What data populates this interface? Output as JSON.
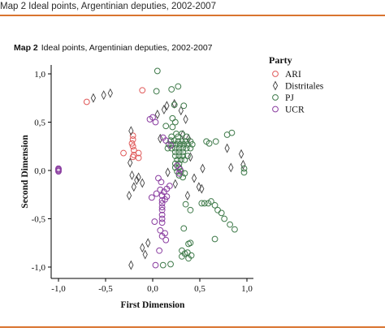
{
  "header": {
    "caption": "Map 2 Ideal points, Argentinian deputies, 2002-2007"
  },
  "figure": {
    "label": "Map 2",
    "title": "Ideal points, Argentinian deputies, 2002-2007"
  },
  "colors": {
    "ARI": "#e05a5a",
    "Distritales": "#444444",
    "PJ": "#3f7a4a",
    "UCR": "#8a3da0",
    "rule": "#d9742f"
  },
  "chart_data": {
    "type": "scatter",
    "xlabel": "First Dimension",
    "ylabel": "Second Dimension",
    "xlim": [
      -1.05,
      1.05
    ],
    "ylim": [
      -1.05,
      1.05
    ],
    "xticks": [
      "-1,0",
      "-0,5",
      "0,0",
      "0,5",
      "1,0"
    ],
    "yticks": [
      "1,0",
      "0,5",
      "0,0",
      "-0,5",
      "-1,0"
    ],
    "legend_title": "Party",
    "legend_position": "right",
    "series": [
      {
        "name": "ARI",
        "marker": "circle",
        "points": [
          [
            -0.7,
            0.71
          ],
          [
            -0.11,
            0.83
          ],
          [
            -0.21,
            0.36
          ],
          [
            -0.21,
            0.32
          ],
          [
            -0.22,
            0.28
          ],
          [
            -0.21,
            0.25
          ],
          [
            -0.2,
            0.21
          ],
          [
            -0.15,
            0.18
          ],
          [
            -0.31,
            0.18
          ],
          [
            -0.2,
            0.16
          ],
          [
            -0.21,
            0.14
          ],
          [
            -0.15,
            0.13
          ]
        ]
      },
      {
        "name": "Distritales",
        "marker": "diamond",
        "points": [
          [
            -0.63,
            0.75
          ],
          [
            -0.52,
            0.78
          ],
          [
            -0.45,
            0.8
          ],
          [
            -0.23,
            0.41
          ],
          [
            -0.24,
            0.08
          ],
          [
            -0.22,
            -0.05
          ],
          [
            -0.17,
            -0.1
          ],
          [
            -0.15,
            -0.07
          ],
          [
            -0.11,
            -0.13
          ],
          [
            -0.05,
            -0.75
          ],
          [
            -0.11,
            -0.8
          ],
          [
            -0.08,
            -0.87
          ],
          [
            -0.23,
            -0.98
          ],
          [
            -0.2,
            -0.17
          ],
          [
            -0.25,
            -0.26
          ],
          [
            0.05,
            0.58
          ],
          [
            0.12,
            0.63
          ],
          [
            0.15,
            0.67
          ],
          [
            0.23,
            0.69
          ],
          [
            0.3,
            0.62
          ],
          [
            0.38,
            0.33
          ],
          [
            0.4,
            0.14
          ],
          [
            0.44,
            -0.08
          ],
          [
            0.49,
            -0.17
          ],
          [
            0.52,
            -0.19
          ],
          [
            0.37,
            -0.26
          ],
          [
            0.24,
            -0.14
          ],
          [
            0.32,
            0.37
          ],
          [
            0.35,
            0.53
          ],
          [
            0.16,
            -0.02
          ],
          [
            0.08,
            0.33
          ],
          [
            0.83,
            0.03
          ],
          [
            0.79,
            0.23
          ],
          [
            0.94,
            0.17
          ],
          [
            0.96,
            0.06
          ],
          [
            0.53,
            0.02
          ]
        ]
      },
      {
        "name": "PJ",
        "marker": "circle",
        "points": [
          [
            0.05,
            1.03
          ],
          [
            0.2,
            0.84
          ],
          [
            0.27,
            0.87
          ],
          [
            0.04,
            0.82
          ],
          [
            0.23,
            0.68
          ],
          [
            0.33,
            0.67
          ],
          [
            0.21,
            0.54
          ],
          [
            0.24,
            0.5
          ],
          [
            0.14,
            0.46
          ],
          [
            0.21,
            0.45
          ],
          [
            0.25,
            0.38
          ],
          [
            0.31,
            0.38
          ],
          [
            0.2,
            0.35
          ],
          [
            0.27,
            0.35
          ],
          [
            0.36,
            0.35
          ],
          [
            0.19,
            0.31
          ],
          [
            0.23,
            0.31
          ],
          [
            0.27,
            0.3
          ],
          [
            0.31,
            0.3
          ],
          [
            0.35,
            0.3
          ],
          [
            0.4,
            0.3
          ],
          [
            0.17,
            0.27
          ],
          [
            0.21,
            0.27
          ],
          [
            0.25,
            0.27
          ],
          [
            0.29,
            0.27
          ],
          [
            0.33,
            0.27
          ],
          [
            0.37,
            0.27
          ],
          [
            0.42,
            0.27
          ],
          [
            0.16,
            0.23
          ],
          [
            0.2,
            0.23
          ],
          [
            0.24,
            0.23
          ],
          [
            0.28,
            0.23
          ],
          [
            0.32,
            0.23
          ],
          [
            0.36,
            0.23
          ],
          [
            0.4,
            0.23
          ],
          [
            0.24,
            0.19
          ],
          [
            0.28,
            0.19
          ],
          [
            0.32,
            0.19
          ],
          [
            0.24,
            0.15
          ],
          [
            0.28,
            0.15
          ],
          [
            0.32,
            0.15
          ],
          [
            0.37,
            0.15
          ],
          [
            0.26,
            0.11
          ],
          [
            0.3,
            0.11
          ],
          [
            0.34,
            0.11
          ],
          [
            0.24,
            0.07
          ],
          [
            0.28,
            0.07
          ],
          [
            0.24,
            0.03
          ],
          [
            0.28,
            0.03
          ],
          [
            0.26,
            -0.01
          ],
          [
            0.3,
            -0.01
          ],
          [
            0.28,
            -0.05
          ],
          [
            0.34,
            -0.03
          ],
          [
            0.32,
            -0.07
          ],
          [
            0.57,
            0.3
          ],
          [
            0.6,
            0.28
          ],
          [
            0.67,
            0.3
          ],
          [
            0.79,
            0.37
          ],
          [
            0.84,
            0.39
          ],
          [
            0.97,
            0.02
          ],
          [
            0.97,
            -0.02
          ],
          [
            0.52,
            -0.34
          ],
          [
            0.55,
            -0.34
          ],
          [
            0.59,
            -0.34
          ],
          [
            0.62,
            -0.32
          ],
          [
            0.66,
            -0.36
          ],
          [
            0.69,
            -0.41
          ],
          [
            0.73,
            -0.44
          ],
          [
            0.76,
            -0.5
          ],
          [
            0.82,
            -0.56
          ],
          [
            0.87,
            -0.61
          ],
          [
            0.66,
            -0.71
          ],
          [
            0.4,
            -0.75
          ],
          [
            0.34,
            -0.86
          ],
          [
            0.38,
            -0.91
          ],
          [
            0.31,
            -0.89
          ],
          [
            0.19,
            -0.97
          ],
          [
            0.11,
            -0.98
          ],
          [
            0.35,
            -0.35
          ],
          [
            0.4,
            -0.41
          ],
          [
            0.33,
            -0.6
          ],
          [
            0.31,
            -0.83
          ],
          [
            0.37,
            -0.85
          ],
          [
            0.38,
            -0.76
          ],
          [
            0.41,
            -0.88
          ]
        ]
      },
      {
        "name": "UCR",
        "marker": "circle",
        "points": [
          [
            -1.0,
            0.01
          ],
          [
            -1.0,
            0.0
          ],
          [
            -1.0,
            -0.01
          ],
          [
            -1.0,
            0.02
          ],
          [
            -0.03,
            0.53
          ],
          [
            0.0,
            0.55
          ],
          [
            0.03,
            0.5
          ],
          [
            0.11,
            0.34
          ],
          [
            0.14,
            0.31
          ],
          [
            0.19,
            0.26
          ],
          [
            0.06,
            -0.08
          ],
          [
            0.09,
            -0.12
          ],
          [
            0.08,
            -0.2
          ],
          [
            0.12,
            -0.22
          ],
          [
            0.1,
            -0.26
          ],
          [
            0.15,
            -0.27
          ],
          [
            0.13,
            -0.3
          ],
          [
            0.1,
            -0.31
          ],
          [
            0.1,
            -0.34
          ],
          [
            0.1,
            -0.38
          ],
          [
            0.1,
            -0.41
          ],
          [
            0.1,
            -0.46
          ],
          [
            0.1,
            -0.5
          ],
          [
            0.1,
            -0.54
          ],
          [
            0.15,
            -0.19
          ],
          [
            0.18,
            -0.16
          ],
          [
            0.04,
            -0.24
          ],
          [
            0.02,
            -0.53
          ],
          [
            0.08,
            -0.62
          ],
          [
            0.13,
            -0.65
          ],
          [
            0.1,
            -0.68
          ],
          [
            0.14,
            -0.72
          ],
          [
            0.07,
            -0.83
          ],
          [
            0.03,
            -0.98
          ],
          [
            0.28,
            -0.03
          ],
          [
            0.26,
            0.05
          ],
          [
            0.29,
            0.01
          ],
          [
            -0.01,
            -0.28
          ]
        ]
      }
    ]
  }
}
